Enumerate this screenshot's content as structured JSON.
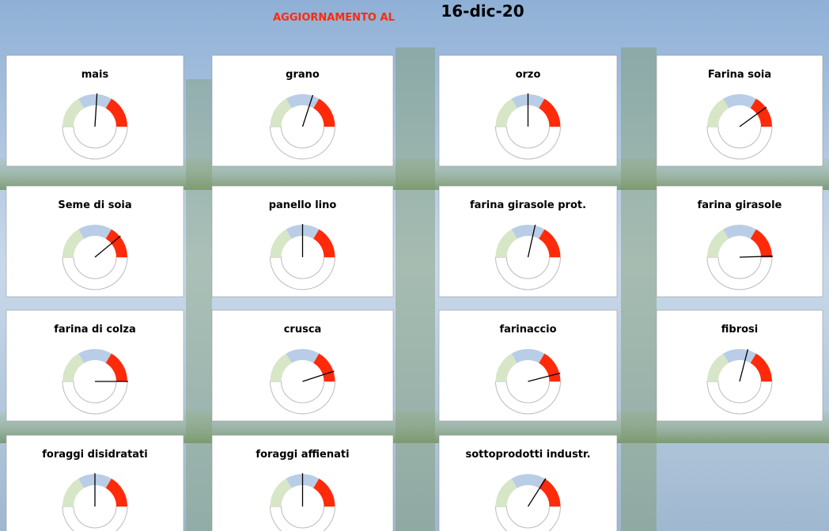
{
  "header": {
    "label": "AGGIORNAMENTO AL",
    "date": "16-dic-20"
  },
  "chart_data": [
    {
      "type": "gauge",
      "title": "mais",
      "value": 52,
      "ylim": [
        0,
        100
      ],
      "thresholds": [
        0,
        33,
        67,
        100
      ],
      "colors": [
        "#d6e6c6",
        "#b9cde6",
        "#ff2a0a"
      ],
      "needle_color": "#000000"
    },
    {
      "type": "gauge",
      "title": "grano",
      "value": 60,
      "ylim": [
        0,
        100
      ],
      "thresholds": [
        0,
        33,
        67,
        100
      ],
      "colors": [
        "#d6e6c6",
        "#b9cde6",
        "#ff2a0a"
      ],
      "needle_color": "#000000"
    },
    {
      "type": "gauge",
      "title": "orzo",
      "value": 50,
      "ylim": [
        0,
        100
      ],
      "thresholds": [
        0,
        33,
        67,
        100
      ],
      "colors": [
        "#d6e6c6",
        "#b9cde6",
        "#ff2a0a"
      ],
      "needle_color": "#000000"
    },
    {
      "type": "gauge",
      "title": "Farina soia",
      "value": 80,
      "ylim": [
        0,
        100
      ],
      "thresholds": [
        0,
        33,
        67,
        100
      ],
      "colors": [
        "#d6e6c6",
        "#b9cde6",
        "#ff2a0a"
      ],
      "needle_color": "#000000"
    },
    {
      "type": "gauge",
      "title": "Seme di soia",
      "value": 78,
      "ylim": [
        0,
        100
      ],
      "thresholds": [
        0,
        33,
        67,
        100
      ],
      "colors": [
        "#d6e6c6",
        "#b9cde6",
        "#ff2a0a"
      ],
      "needle_color": "#000000"
    },
    {
      "type": "gauge",
      "title": "panello lino",
      "value": 50,
      "ylim": [
        0,
        100
      ],
      "thresholds": [
        0,
        33,
        67,
        100
      ],
      "colors": [
        "#d6e6c6",
        "#b9cde6",
        "#ff2a0a"
      ],
      "needle_color": "#000000"
    },
    {
      "type": "gauge",
      "title": "farina girasole prot.",
      "value": 57,
      "ylim": [
        0,
        100
      ],
      "thresholds": [
        0,
        33,
        67,
        100
      ],
      "colors": [
        "#d6e6c6",
        "#b9cde6",
        "#ff2a0a"
      ],
      "needle_color": "#000000"
    },
    {
      "type": "gauge",
      "title": "farina girasole",
      "value": 99,
      "ylim": [
        0,
        100
      ],
      "thresholds": [
        0,
        33,
        67,
        100
      ],
      "colors": [
        "#d6e6c6",
        "#b9cde6",
        "#ff2a0a"
      ],
      "needle_color": "#000000"
    },
    {
      "type": "gauge",
      "title": "farina di colza",
      "value": 100,
      "ylim": [
        0,
        100
      ],
      "thresholds": [
        0,
        33,
        67,
        100
      ],
      "colors": [
        "#d6e6c6",
        "#b9cde6",
        "#ff2a0a"
      ],
      "needle_color": "#000000"
    },
    {
      "type": "gauge",
      "title": "crusca",
      "value": 90,
      "ylim": [
        0,
        100
      ],
      "thresholds": [
        0,
        33,
        67,
        100
      ],
      "colors": [
        "#d6e6c6",
        "#b9cde6",
        "#ff2a0a"
      ],
      "needle_color": "#000000"
    },
    {
      "type": "gauge",
      "title": "farinaccio",
      "value": 92,
      "ylim": [
        0,
        100
      ],
      "thresholds": [
        0,
        33,
        67,
        100
      ],
      "colors": [
        "#d6e6c6",
        "#b9cde6",
        "#ff2a0a"
      ],
      "needle_color": "#000000"
    },
    {
      "type": "gauge",
      "title": "fibrosi",
      "value": 58,
      "ylim": [
        0,
        100
      ],
      "thresholds": [
        0,
        33,
        67,
        100
      ],
      "colors": [
        "#d6e6c6",
        "#b9cde6",
        "#ff2a0a"
      ],
      "needle_color": "#000000"
    },
    {
      "type": "gauge",
      "title": "foraggi disidratati",
      "value": 50,
      "ylim": [
        0,
        100
      ],
      "thresholds": [
        0,
        33,
        67,
        100
      ],
      "colors": [
        "#d6e6c6",
        "#b9cde6",
        "#ff2a0a"
      ],
      "needle_color": "#000000"
    },
    {
      "type": "gauge",
      "title": "foraggi affienati",
      "value": 50,
      "ylim": [
        0,
        100
      ],
      "thresholds": [
        0,
        33,
        67,
        100
      ],
      "colors": [
        "#d6e6c6",
        "#b9cde6",
        "#ff2a0a"
      ],
      "needle_color": "#000000"
    },
    {
      "type": "gauge",
      "title": "sottoprodotti industr.",
      "value": 68,
      "ylim": [
        0,
        100
      ],
      "thresholds": [
        0,
        33,
        67,
        100
      ],
      "colors": [
        "#d6e6c6",
        "#b9cde6",
        "#ff2a0a"
      ],
      "needle_color": "#000000"
    }
  ]
}
